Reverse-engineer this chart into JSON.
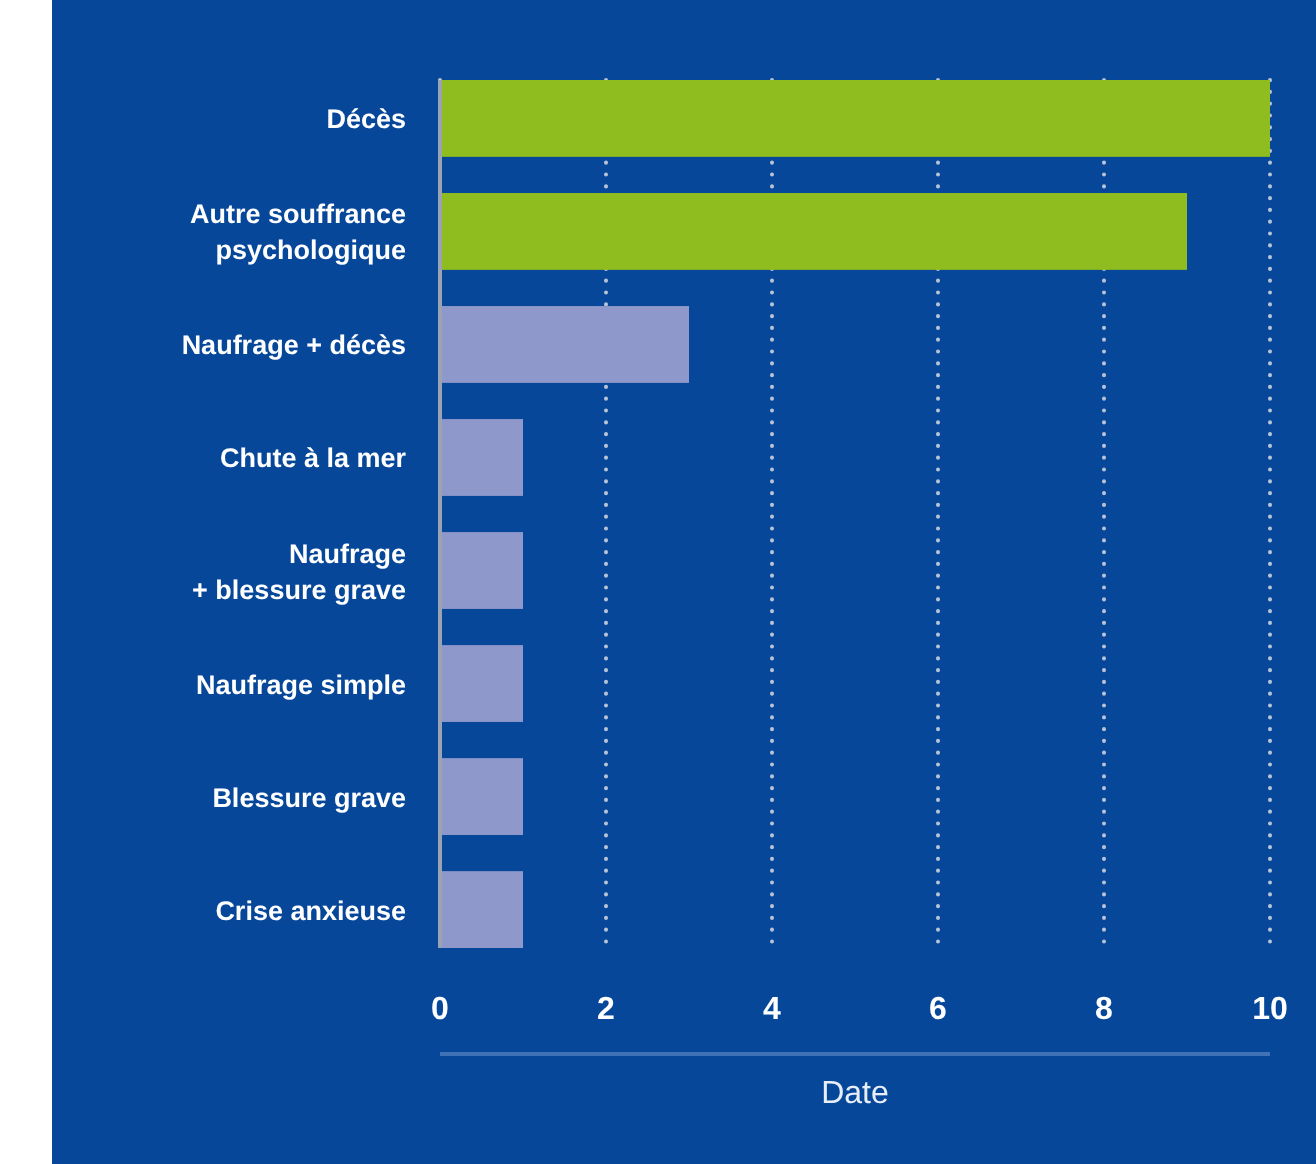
{
  "chart_data": {
    "type": "bar",
    "orientation": "horizontal",
    "xlabel": "Date",
    "categories": [
      "Décès",
      "Autre souffrance\npsychologique",
      "Naufrage + décès",
      "Chute à la mer",
      "Naufrage\n+ blessure grave",
      "Naufrage simple",
      "Blessure grave",
      "Crise anxieuse"
    ],
    "values": [
      10,
      9,
      3,
      1,
      1,
      1,
      1,
      1
    ],
    "colors": [
      "#8fbc1f",
      "#8fbc1f",
      "#8e98cb",
      "#8e98cb",
      "#8e98cb",
      "#8e98cb",
      "#8e98cb",
      "#8e98cb"
    ],
    "xlim": [
      0,
      10
    ],
    "xticks": [
      0,
      2,
      4,
      6,
      8,
      10
    ],
    "grid": "x"
  }
}
